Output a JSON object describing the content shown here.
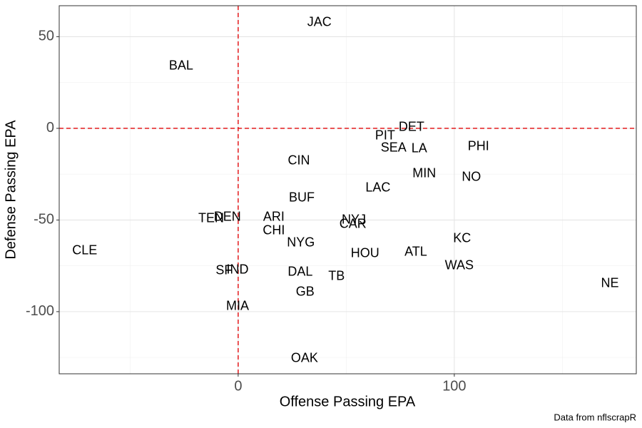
{
  "chart_data": {
    "type": "text-scatter",
    "x_label": "Offense Passing EPA",
    "y_label": "Defense Passing EPA",
    "caption": "Data from nflscrapR",
    "labels": [
      "JAC",
      "BAL",
      "DET",
      "PIT",
      "SEA",
      "LA",
      "PHI",
      "CIN",
      "MIN",
      "NO",
      "LAC",
      "BUF",
      "TEN",
      "DEN",
      "ARI",
      "NYJ",
      "CAR",
      "CHI",
      "KC",
      "NYG",
      "CLE",
      "ATL",
      "HOU",
      "WAS",
      "SF",
      "IND",
      "DAL",
      "TB",
      "NE",
      "GB",
      "MIA",
      "OAK"
    ],
    "x": [
      37.6,
      -26.4,
      80.2,
      68.0,
      71.9,
      83.8,
      111.2,
      28.1,
      86.1,
      107.9,
      64.7,
      29.4,
      -12.5,
      -5.0,
      16.5,
      53.5,
      53.1,
      16.5,
      103.6,
      29.0,
      -71.0,
      82.2,
      58.7,
      102.3,
      -6.6,
      -0.3,
      28.7,
      45.5,
      172.0,
      31.0,
      -0.3,
      30.7
    ],
    "values": [
      57.6,
      33.9,
      0.4,
      -4.3,
      -10.9,
      -11.3,
      -10.1,
      -17.9,
      -24.9,
      -26.8,
      -32.7,
      -38.1,
      -49.4,
      -48.6,
      -48.6,
      -50.2,
      -52.5,
      -56.0,
      -60.3,
      -62.6,
      -66.9,
      -67.7,
      -68.5,
      -75.1,
      -77.8,
      -77.4,
      -78.6,
      -80.9,
      -84.8,
      -89.5,
      -97.3,
      -125.7
    ],
    "color": "#000000",
    "xlim": [
      -82.8,
      184.2
    ],
    "ylim": [
      -133.9,
      66.9
    ],
    "xticks": [
      0,
      100
    ],
    "yticks": [
      -100,
      -50,
      0,
      50
    ],
    "x_minor_grid": [
      -50,
      50,
      150
    ],
    "y_minor_grid": [
      -125,
      -75,
      -25,
      25
    ],
    "grid": true,
    "hline": 0,
    "vline": 0,
    "reference_color": "#e41a1c"
  }
}
